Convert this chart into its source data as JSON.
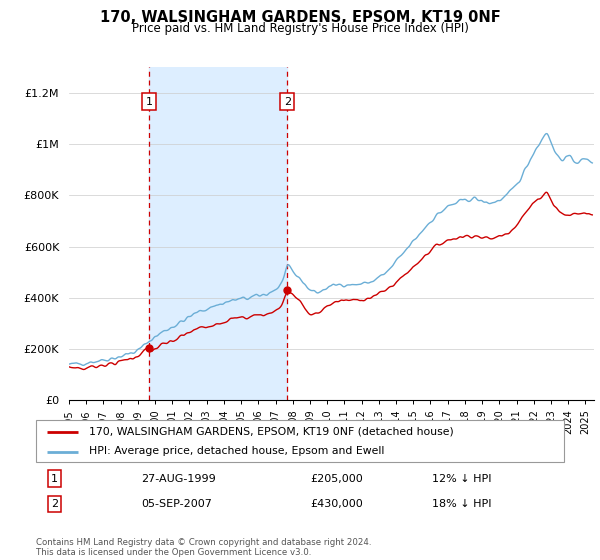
{
  "title": "170, WALSINGHAM GARDENS, EPSOM, KT19 0NF",
  "subtitle": "Price paid vs. HM Land Registry's House Price Index (HPI)",
  "ylabel_ticks": [
    "£0",
    "£200K",
    "£400K",
    "£600K",
    "£800K",
    "£1M",
    "£1.2M"
  ],
  "ylim": [
    0,
    1300000
  ],
  "xlim_start": 1995.0,
  "xlim_end": 2025.5,
  "sale1_date": 1999.65,
  "sale1_price": 205000,
  "sale1_label": "1",
  "sale2_date": 2007.68,
  "sale2_price": 430000,
  "sale2_label": "2",
  "hpi_color": "#6baed6",
  "price_color": "#cc0000",
  "shade_color": "#ddeeff",
  "vline_color": "#cc0000",
  "legend_line1": "170, WALSINGHAM GARDENS, EPSOM, KT19 0NF (detached house)",
  "legend_line2": "HPI: Average price, detached house, Epsom and Ewell",
  "table_row1": [
    "1",
    "27-AUG-1999",
    "£205,000",
    "12% ↓ HPI"
  ],
  "table_row2": [
    "2",
    "05-SEP-2007",
    "£430,000",
    "18% ↓ HPI"
  ],
  "footer": "Contains HM Land Registry data © Crown copyright and database right 2024.\nThis data is licensed under the Open Government Licence v3.0."
}
